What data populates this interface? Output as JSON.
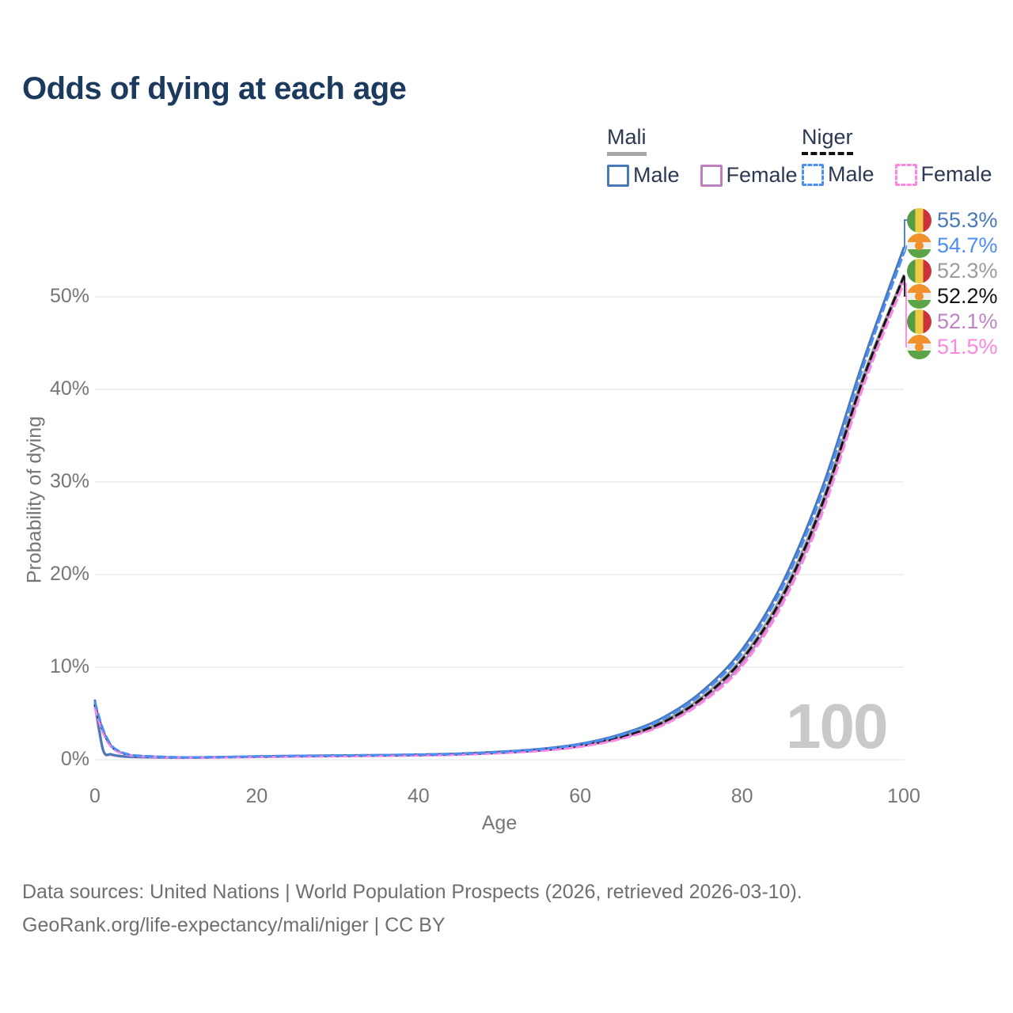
{
  "title": "Odds of dying at each age",
  "legend": {
    "groups": [
      {
        "country": "Mali",
        "line_style": "solid",
        "underline_color": "#a6a6a6",
        "items": [
          {
            "label": "Male",
            "color": "#4a79b8"
          },
          {
            "label": "Female",
            "color": "#bd7fbd"
          }
        ]
      },
      {
        "country": "Niger",
        "line_style": "dashed",
        "underline_color": "#111111",
        "items": [
          {
            "label": "Male",
            "color": "#4c8ef5"
          },
          {
            "label": "Female",
            "color": "#fb87e2"
          }
        ]
      }
    ]
  },
  "end_labels": [
    {
      "flag": "mali",
      "value": "55.3%",
      "color": "#4a79b8"
    },
    {
      "flag": "niger",
      "value": "54.7%",
      "color": "#4c8ef5"
    },
    {
      "flag": "mali",
      "value": "52.3%",
      "color": "#9c9c9c"
    },
    {
      "flag": "niger",
      "value": "52.2%",
      "color": "#141414"
    },
    {
      "flag": "mali",
      "value": "52.1%",
      "color": "#be84c6"
    },
    {
      "flag": "niger",
      "value": "51.5%",
      "color": "#fb87e2"
    }
  ],
  "flag_colors": {
    "mali": [
      "#569c48",
      "#eecb44",
      "#cb323c"
    ],
    "niger": [
      "#f0912c",
      "#efefec",
      "#5ba447"
    ]
  },
  "watermark": "100",
  "footer": {
    "line1": "Data sources: United Nations | World Population Prospects (2026, retrieved 2026-03-10).",
    "line2": "GeoRank.org/life-expectancy/mali/niger | CC BY"
  },
  "chart_data": {
    "type": "line",
    "title": "Odds of dying at each age",
    "xlabel": "Age",
    "ylabel": "Probability of dying",
    "xlim": [
      0,
      100
    ],
    "ylim_percent": [
      0,
      50
    ],
    "x_ticks": [
      0,
      20,
      40,
      60,
      80,
      100
    ],
    "y_ticks": [
      "0%",
      "10%",
      "20%",
      "30%",
      "40%",
      "50%"
    ],
    "grid": "horizontal",
    "legend_position": "top-right",
    "x": [
      0,
      1,
      2,
      3,
      4,
      5,
      10,
      15,
      20,
      25,
      30,
      35,
      40,
      45,
      50,
      55,
      60,
      65,
      70,
      75,
      80,
      85,
      90,
      95,
      100
    ],
    "series": [
      {
        "name": "Mali · Male",
        "country": "Mali",
        "sex": "Male",
        "style": "solid",
        "color": "#4a79b8",
        "end_label": "55.3%",
        "values": [
          6.4,
          1.1,
          0.6,
          0.42,
          0.34,
          0.3,
          0.24,
          0.28,
          0.36,
          0.42,
          0.46,
          0.5,
          0.56,
          0.66,
          0.86,
          1.16,
          1.72,
          2.75,
          4.45,
          7.35,
          11.9,
          19.1,
          29.6,
          43.1,
          55.3
        ]
      },
      {
        "name": "Niger · Male",
        "country": "Niger",
        "sex": "Male",
        "style": "dashed",
        "color": "#4c8ef5",
        "end_label": "54.7%",
        "values": [
          6.2,
          3.3,
          1.6,
          0.92,
          0.62,
          0.46,
          0.27,
          0.29,
          0.36,
          0.42,
          0.46,
          0.5,
          0.55,
          0.64,
          0.83,
          1.12,
          1.66,
          2.65,
          4.3,
          7.1,
          11.5,
          18.6,
          29.0,
          42.5,
          54.7
        ]
      },
      {
        "name": "Mali",
        "country": "Mali",
        "sex": "Both",
        "style": "solid",
        "color": "#9c9c9c",
        "end_label": "52.3%",
        "values": [
          6.1,
          1.05,
          0.57,
          0.4,
          0.33,
          0.29,
          0.23,
          0.26,
          0.33,
          0.39,
          0.43,
          0.47,
          0.52,
          0.61,
          0.79,
          1.06,
          1.57,
          2.52,
          4.05,
          6.75,
          11.0,
          17.9,
          28.1,
          41.5,
          52.3
        ]
      },
      {
        "name": "Niger",
        "country": "Niger",
        "sex": "Both",
        "style": "dashed",
        "color": "#141414",
        "end_label": "52.2%",
        "values": [
          5.9,
          3.1,
          1.5,
          0.86,
          0.58,
          0.43,
          0.26,
          0.27,
          0.33,
          0.38,
          0.42,
          0.46,
          0.5,
          0.59,
          0.77,
          1.03,
          1.52,
          2.45,
          3.95,
          6.6,
          10.8,
          17.6,
          27.8,
          41.2,
          52.2
        ]
      },
      {
        "name": "Mali · Female",
        "country": "Mali",
        "sex": "Female",
        "style": "solid",
        "color": "#be84c6",
        "end_label": "52.1%",
        "values": [
          5.8,
          1.0,
          0.54,
          0.38,
          0.31,
          0.27,
          0.22,
          0.24,
          0.3,
          0.35,
          0.39,
          0.43,
          0.48,
          0.57,
          0.73,
          0.98,
          1.44,
          2.32,
          3.75,
          6.35,
          10.4,
          17.2,
          27.3,
          40.8,
          52.1
        ]
      },
      {
        "name": "Niger · Female",
        "country": "Niger",
        "sex": "Female",
        "style": "dashed",
        "color": "#fb87e2",
        "end_label": "51.5%",
        "values": [
          5.6,
          2.9,
          1.4,
          0.8,
          0.55,
          0.41,
          0.24,
          0.25,
          0.3,
          0.34,
          0.38,
          0.42,
          0.46,
          0.54,
          0.71,
          0.95,
          1.4,
          2.25,
          3.65,
          6.15,
          10.1,
          16.8,
          26.8,
          40.3,
          51.5
        ]
      }
    ],
    "watermark": "100"
  }
}
